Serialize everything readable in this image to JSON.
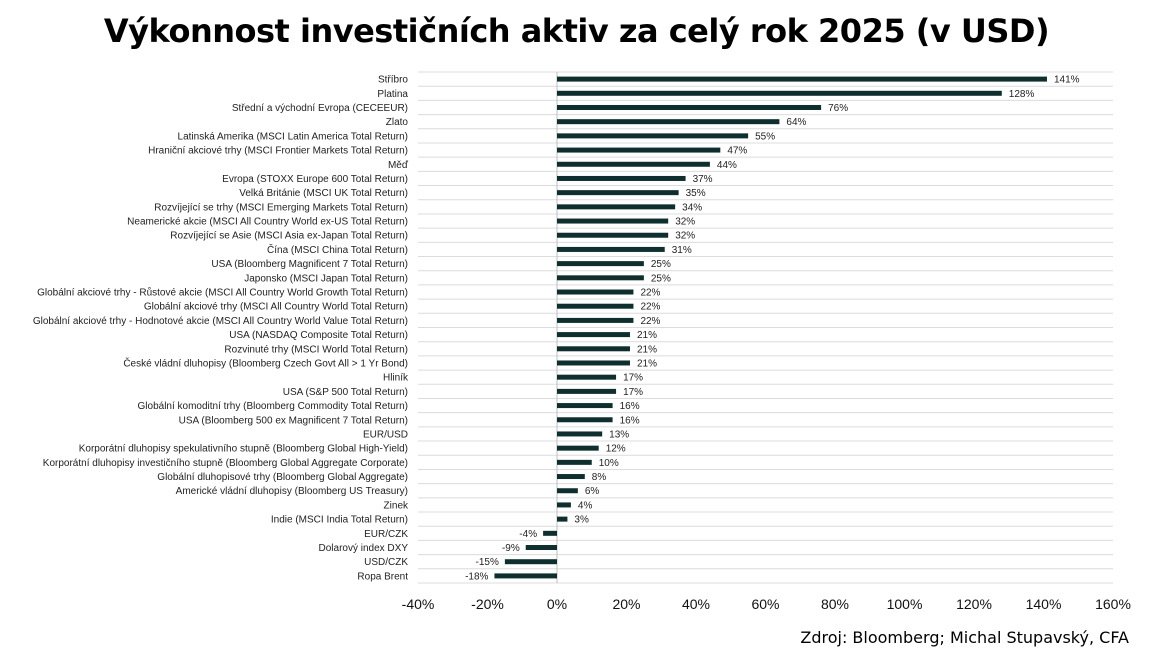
{
  "chart_data": {
    "type": "bar",
    "orientation": "horizontal",
    "title": "Výkonnost investičních aktiv za celý rok 2025 (v USD)",
    "source": "Zdroj: Bloomberg; Michal Stupavský, CFA",
    "xlim": [
      -40,
      160
    ],
    "ticks": [
      "-40%",
      "-20%",
      "0%",
      "20%",
      "40%",
      "60%",
      "80%",
      "100%",
      "120%",
      "140%",
      "160%"
    ],
    "tick_values": [
      -40,
      -20,
      0,
      20,
      40,
      60,
      80,
      100,
      120,
      140,
      160
    ],
    "grid": "horizontal",
    "bar_color": "#0f2f2f",
    "categories": [
      "Stříbro",
      "Platina",
      "Střední a východní Evropa (CECEEUR)",
      "Zlato",
      "Latinská Amerika (MSCI Latin America Total Return)",
      "Hraniční akciové trhy (MSCI Frontier Markets Total Return)",
      "Měď",
      "Evropa (STOXX Europe 600 Total Return)",
      "Velká Británie (MSCI UK Total Return)",
      "Rozvíjející se trhy (MSCI Emerging Markets Total Return)",
      "Neamerické akcie (MSCI All Country World ex-US Total Return)",
      "Rozvíjející se Asie (MSCI Asia ex-Japan Total Return)",
      "Čína (MSCI China Total Return)",
      "USA (Bloomberg Magnificent 7 Total Return)",
      "Japonsko (MSCI Japan Total Return)",
      "Globální akciové trhy - Růstové akcie (MSCI All Country World Growth Total Return)",
      "Globální akciové trhy (MSCI All Country World Total Return)",
      "Globální akciové trhy - Hodnotové akcie (MSCI All Country World Value Total Return)",
      "USA (NASDAQ Composite Total Return)",
      "Rozvinuté trhy (MSCI World Total Return)",
      "České vládní dluhopisy (Bloomberg Czech Govt All > 1 Yr Bond)",
      "Hliník",
      "USA (S&P 500 Total Return)",
      "Globální komoditní trhy (Bloomberg Commodity Total Return)",
      "USA (Bloomberg 500 ex Magnificent 7 Total Return)",
      "EUR/USD",
      "Korporátní dluhopisy spekulativního stupně (Bloomberg Global High-Yield)",
      "Korporátní dluhopisy investičního stupně (Bloomberg Global Aggregate Corporate)",
      "Globální dluhopisové trhy (Bloomberg Global Aggregate)",
      "Americké vládní dluhopisy (Bloomberg US Treasury)",
      "Zinek",
      "Indie (MSCI India Total Return)",
      "EUR/CZK",
      "Dolarový index DXY",
      "USD/CZK",
      "Ropa Brent"
    ],
    "values": [
      141,
      128,
      76,
      64,
      55,
      47,
      44,
      37,
      35,
      34,
      32,
      32,
      31,
      25,
      25,
      22,
      22,
      22,
      21,
      21,
      21,
      17,
      17,
      16,
      16,
      13,
      12,
      10,
      8,
      6,
      4,
      3,
      -4,
      -9,
      -15,
      -18
    ],
    "value_labels": [
      "141%",
      "128%",
      "76%",
      "64%",
      "55%",
      "47%",
      "44%",
      "37%",
      "35%",
      "34%",
      "32%",
      "32%",
      "31%",
      "25%",
      "25%",
      "22%",
      "22%",
      "22%",
      "21%",
      "21%",
      "21%",
      "17%",
      "17%",
      "16%",
      "16%",
      "13%",
      "12%",
      "10%",
      "8%",
      "6%",
      "4%",
      "3%",
      "-4%",
      "-9%",
      "-15%",
      "-18%"
    ]
  }
}
